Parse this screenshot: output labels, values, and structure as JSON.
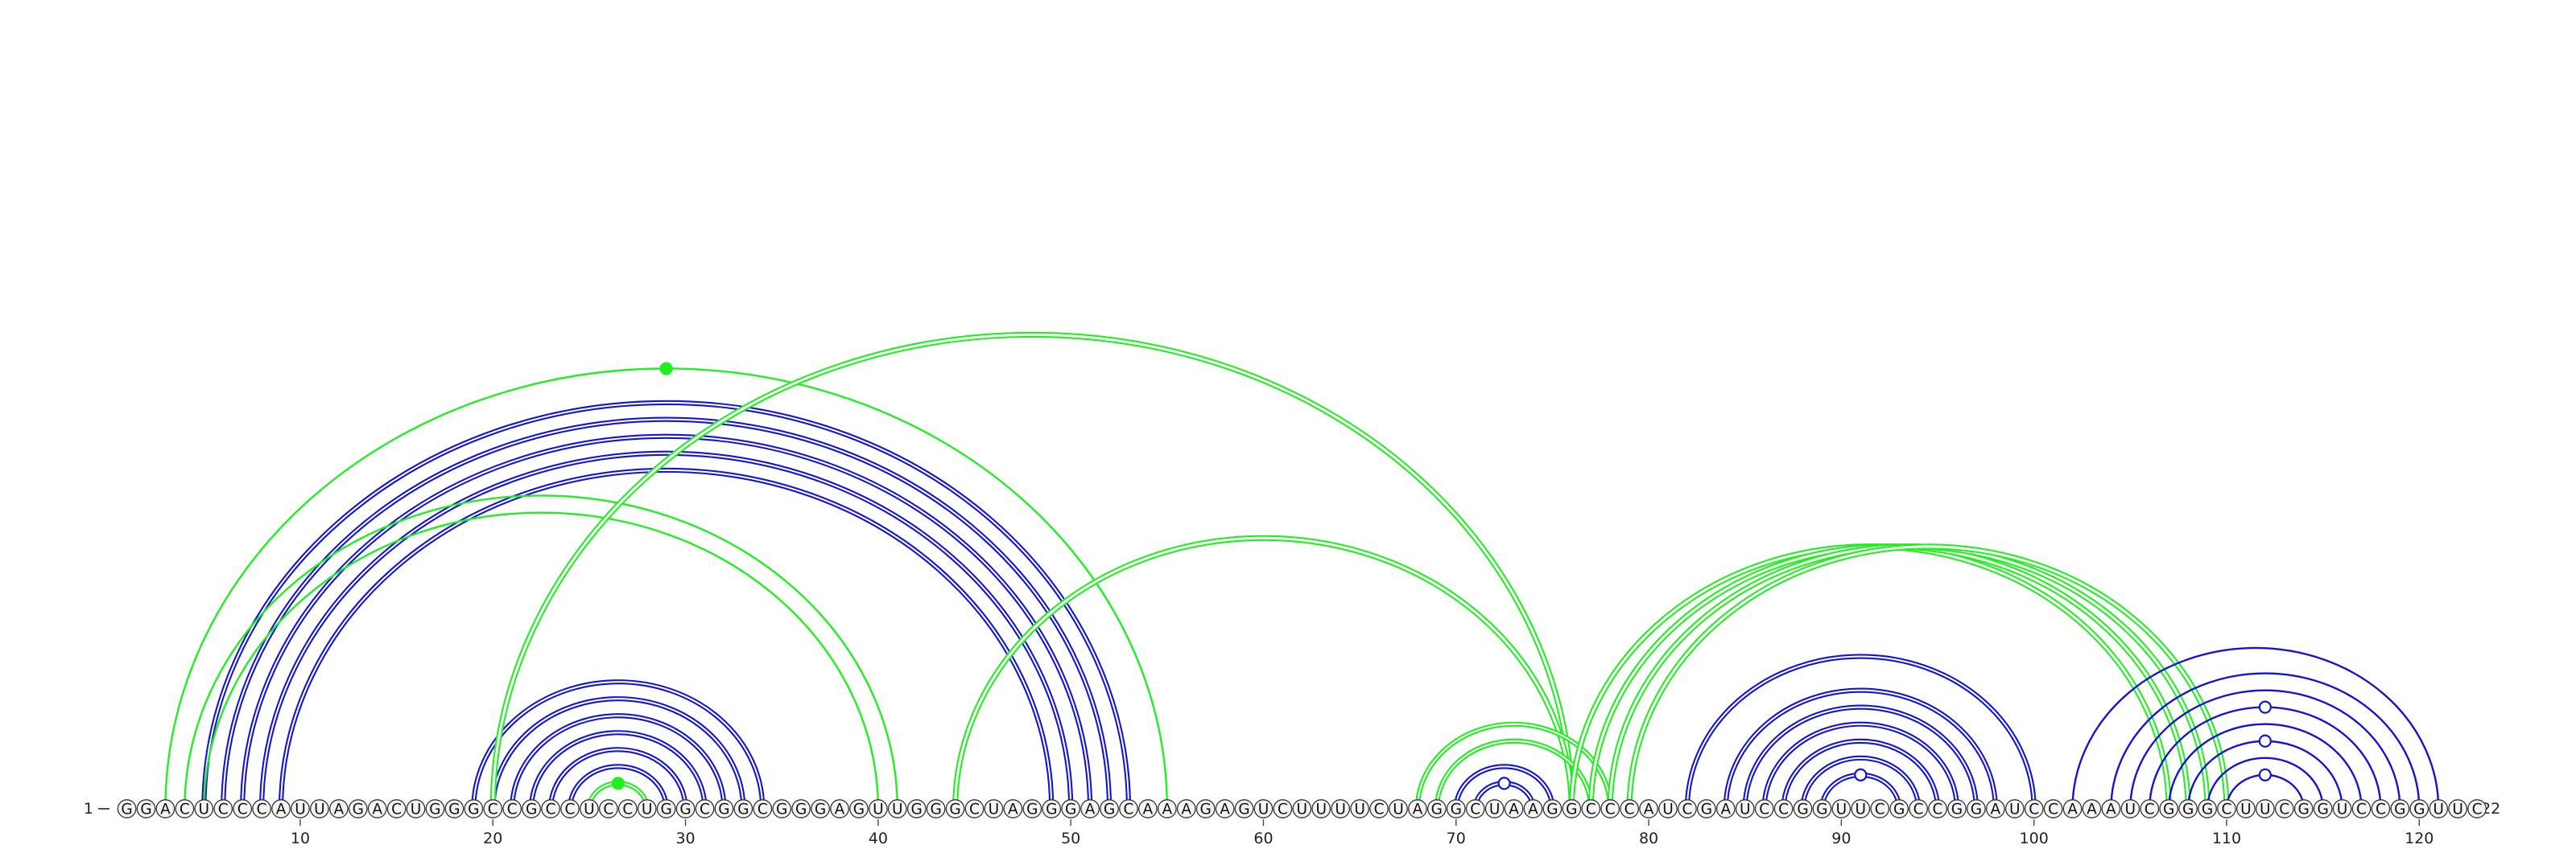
{
  "diagram": {
    "type": "rna-arc-diagram",
    "start_label": "1",
    "end_label": "122",
    "sequence": "GGACUCCCAUUAGACUGGGCCGCCUCCUGGCGGCGGGAGUUGGGCUAGGGAGCAAAGAGUCUUUUCUAGGCUAAGGCCCAUCGAUCCGGUUCGCCGGAUCCAAAUCGGGCUUCGGUCCGGUUC",
    "tick_labels": [
      10,
      20,
      30,
      40,
      50,
      60,
      70,
      80,
      90,
      100,
      110,
      120
    ],
    "colors": {
      "blue": "#1414d2",
      "green": "#22ee22",
      "base_fill": "#f4f4f4",
      "base_stroke": "#333333"
    },
    "arc_groups": [
      {
        "color": "blue",
        "style": "double",
        "pairs": [
          [
            5,
            53
          ],
          [
            6,
            52
          ],
          [
            7,
            51
          ],
          [
            8,
            50
          ],
          [
            9,
            49
          ]
        ]
      },
      {
        "color": "green",
        "style": "single",
        "pairs": [
          [
            3,
            55
          ],
          [
            4,
            41
          ],
          [
            5,
            40
          ]
        ],
        "marker": {
          "on_pair": 0,
          "type": "filled"
        }
      },
      {
        "color": "blue",
        "style": "double",
        "pairs": [
          [
            19,
            34
          ],
          [
            20,
            33
          ],
          [
            21,
            32
          ],
          [
            22,
            31
          ],
          [
            23,
            30
          ],
          [
            24,
            29
          ]
        ]
      },
      {
        "color": "green",
        "style": "double",
        "pairs": [
          [
            25,
            28
          ]
        ],
        "marker": {
          "on_pair": 0,
          "type": "filled"
        }
      },
      {
        "color": "green",
        "style": "double-thick",
        "pairs": [
          [
            20,
            76
          ],
          [
            44,
            76
          ]
        ]
      },
      {
        "color": "green",
        "style": "double",
        "pairs": [
          [
            68,
            78
          ],
          [
            69,
            77
          ]
        ]
      },
      {
        "color": "blue",
        "style": "double",
        "pairs": [
          [
            70,
            75
          ],
          [
            71,
            74
          ]
        ],
        "marker": {
          "on_pair": 1,
          "type": "open"
        }
      },
      {
        "color": "green",
        "style": "double-thick",
        "pairs": [
          [
            76,
            107
          ],
          [
            77,
            108
          ],
          [
            78,
            109
          ],
          [
            79,
            110
          ]
        ]
      },
      {
        "color": "blue",
        "style": "double",
        "pairs": [
          [
            82,
            100
          ],
          [
            84,
            98
          ],
          [
            85,
            97
          ],
          [
            86,
            96
          ],
          [
            87,
            95
          ],
          [
            88,
            94
          ],
          [
            89,
            93
          ]
        ],
        "marker": {
          "on_pair": 6,
          "type": "open"
        }
      },
      {
        "color": "blue",
        "style": "single",
        "pairs": [
          [
            102,
            121
          ],
          [
            104,
            120
          ],
          [
            105,
            119
          ],
          [
            106,
            118
          ],
          [
            107,
            117
          ],
          [
            108,
            116
          ],
          [
            109,
            115
          ],
          [
            110,
            114
          ]
        ],
        "markers": [
          {
            "on_pair": 3,
            "type": "open"
          },
          {
            "on_pair": 5,
            "type": "open"
          },
          {
            "on_pair": 7,
            "type": "open"
          }
        ]
      }
    ]
  }
}
